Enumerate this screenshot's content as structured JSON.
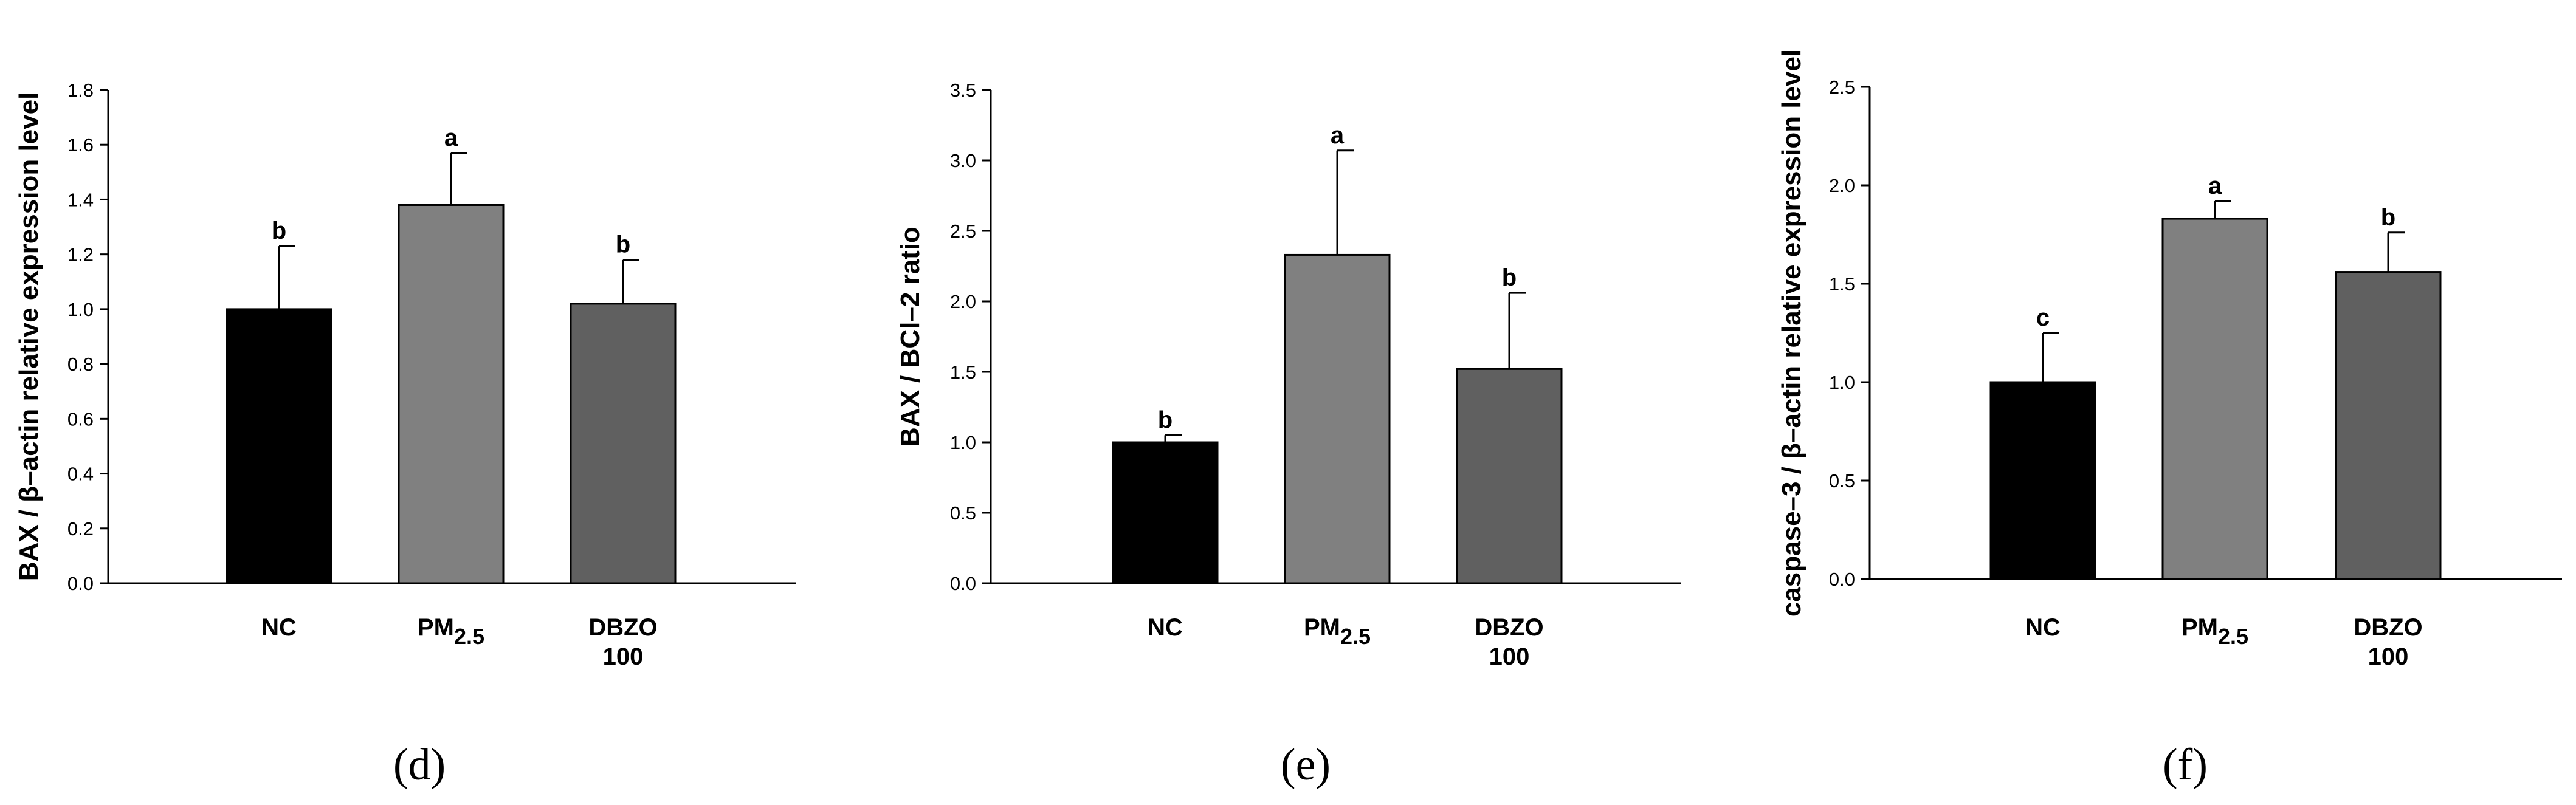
{
  "chart_data": [
    {
      "type": "bar",
      "panel": "(d)",
      "title": "",
      "ylabel": "BAX / β–actin relative expression level",
      "xlabel": "",
      "categories": [
        {
          "main": "NC",
          "sub": "",
          "line2": ""
        },
        {
          "main": "PM",
          "sub": "2.5",
          "line2": ""
        },
        {
          "main": "DBZO",
          "sub": "",
          "line2": "100"
        }
      ],
      "values": [
        1.0,
        1.38,
        1.02
      ],
      "errors": [
        0.23,
        0.19,
        0.16
      ],
      "significance": [
        "b",
        "a",
        "b"
      ],
      "colors": [
        "#000000",
        "#808080",
        "#606060"
      ],
      "ylim": [
        0,
        1.8
      ],
      "yticks": [
        0.0,
        0.2,
        0.4,
        0.6,
        0.8,
        1.0,
        1.2,
        1.4,
        1.6,
        1.8
      ],
      "ytick_labels": [
        "0.0",
        "0.2",
        "0.4",
        "0.6",
        "0.8",
        "1.0",
        "1.2",
        "1.4",
        "1.6",
        "1.8"
      ]
    },
    {
      "type": "bar",
      "panel": "(e)",
      "title": "",
      "ylabel": "BAX / BCl–2 ratio",
      "xlabel": "",
      "categories": [
        {
          "main": "NC",
          "sub": "",
          "line2": ""
        },
        {
          "main": "PM",
          "sub": "2.5",
          "line2": ""
        },
        {
          "main": "DBZO",
          "sub": "",
          "line2": "100"
        }
      ],
      "values": [
        1.0,
        2.33,
        1.52
      ],
      "errors": [
        0.05,
        0.74,
        0.54
      ],
      "significance": [
        "b",
        "a",
        "b"
      ],
      "colors": [
        "#000000",
        "#808080",
        "#606060"
      ],
      "ylim": [
        0,
        3.5
      ],
      "yticks": [
        0.0,
        0.5,
        1.0,
        1.5,
        2.0,
        2.5,
        3.0,
        3.5
      ],
      "ytick_labels": [
        "0.0",
        "0.5",
        "1.0",
        "1.5",
        "2.0",
        "2.5",
        "3.0",
        "3.5"
      ]
    },
    {
      "type": "bar",
      "panel": "(f)",
      "title": "",
      "ylabel": "caspase–3 / β–actin relative expression level",
      "xlabel": "",
      "categories": [
        {
          "main": "NC",
          "sub": "",
          "line2": ""
        },
        {
          "main": "PM",
          "sub": "2.5",
          "line2": ""
        },
        {
          "main": "DBZO",
          "sub": "",
          "line2": "100"
        }
      ],
      "values": [
        1.0,
        1.83,
        1.56
      ],
      "errors": [
        0.25,
        0.09,
        0.2
      ],
      "significance": [
        "c",
        "a",
        "b"
      ],
      "colors": [
        "#000000",
        "#808080",
        "#606060"
      ],
      "ylim": [
        0,
        2.5
      ],
      "yticks": [
        0.0,
        0.5,
        1.0,
        1.5,
        2.0,
        2.5
      ],
      "ytick_labels": [
        "0.0",
        "0.5",
        "1.0",
        "1.5",
        "2.0",
        "2.5"
      ]
    }
  ]
}
